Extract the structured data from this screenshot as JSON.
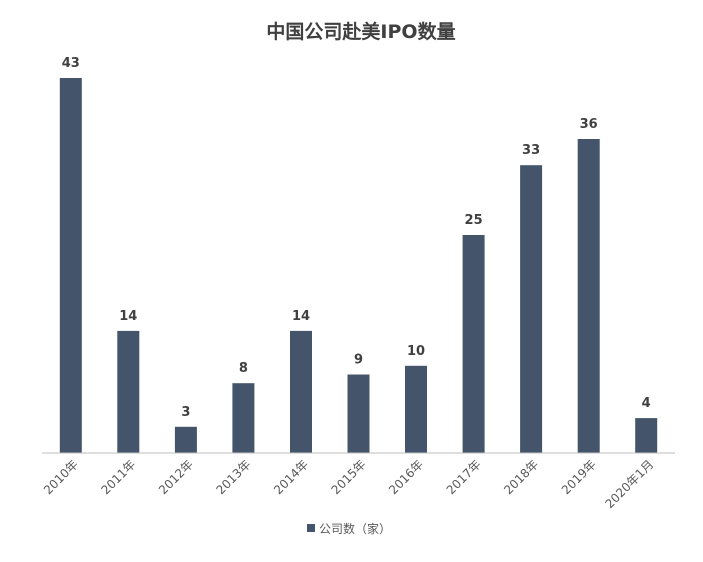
{
  "chart_data": {
    "type": "bar",
    "title": "中国公司赴美IPO数量",
    "categories": [
      "2010年",
      "2011年",
      "2012年",
      "2013年",
      "2014年",
      "2015年",
      "2016年",
      "2017年",
      "2018年",
      "2019年",
      "2020年1月"
    ],
    "series": [
      {
        "name": "公司数（家）",
        "values": [
          43,
          14,
          3,
          8,
          14,
          9,
          10,
          25,
          33,
          36,
          4
        ],
        "color": "#44546a"
      }
    ],
    "ylim": [
      0,
      43
    ],
    "grid": false,
    "legend": "bottom"
  }
}
